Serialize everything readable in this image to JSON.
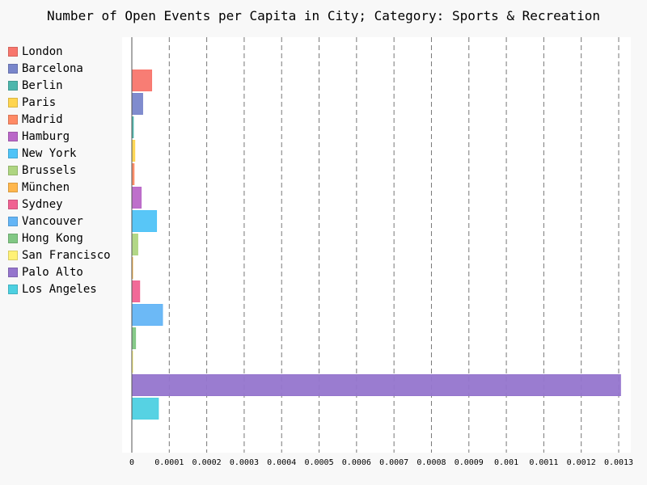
{
  "chart_data": {
    "type": "bar",
    "orientation": "horizontal",
    "title": "Number of Open Events per Capita in City; Category: Sports & Recreation",
    "xlabel": "",
    "ylabel": "",
    "xlim": [
      0,
      0.0013
    ],
    "grid": true,
    "legend_position": "left",
    "x_ticks": [
      "0",
      "0.0001",
      "0.0002",
      "0.0003",
      "0.0004",
      "0.0005",
      "0.0006",
      "0.0007",
      "0.0008",
      "0.0009",
      "0.001",
      "0.0011",
      "0.0012",
      "0.0013"
    ],
    "categories": [
      "London",
      "Barcelona",
      "Berlin",
      "Paris",
      "Madrid",
      "Hamburg",
      "New York",
      "Brussels",
      "München",
      "Sydney",
      "Vancouver",
      "Hong Kong",
      "San Francisco",
      "Palo Alto",
      "Los Angeles"
    ],
    "values": [
      5.3e-05,
      2.9e-05,
      4e-06,
      8e-06,
      6e-06,
      2.5e-05,
      6.6e-05,
      1.6e-05,
      2e-06,
      2.1e-05,
      8.2e-05,
      1e-05,
      1e-06,
      0.001305,
      7.1e-05
    ],
    "colors": [
      "#F8766D",
      "#7986CB",
      "#4DB6AC",
      "#FFD54F",
      "#FF8A65",
      "#BA68C8",
      "#4FC3F7",
      "#AED581",
      "#FFB74D",
      "#F06292",
      "#64B5F6",
      "#81C784",
      "#FFF176",
      "#9575CD",
      "#4DD0E1"
    ]
  }
}
